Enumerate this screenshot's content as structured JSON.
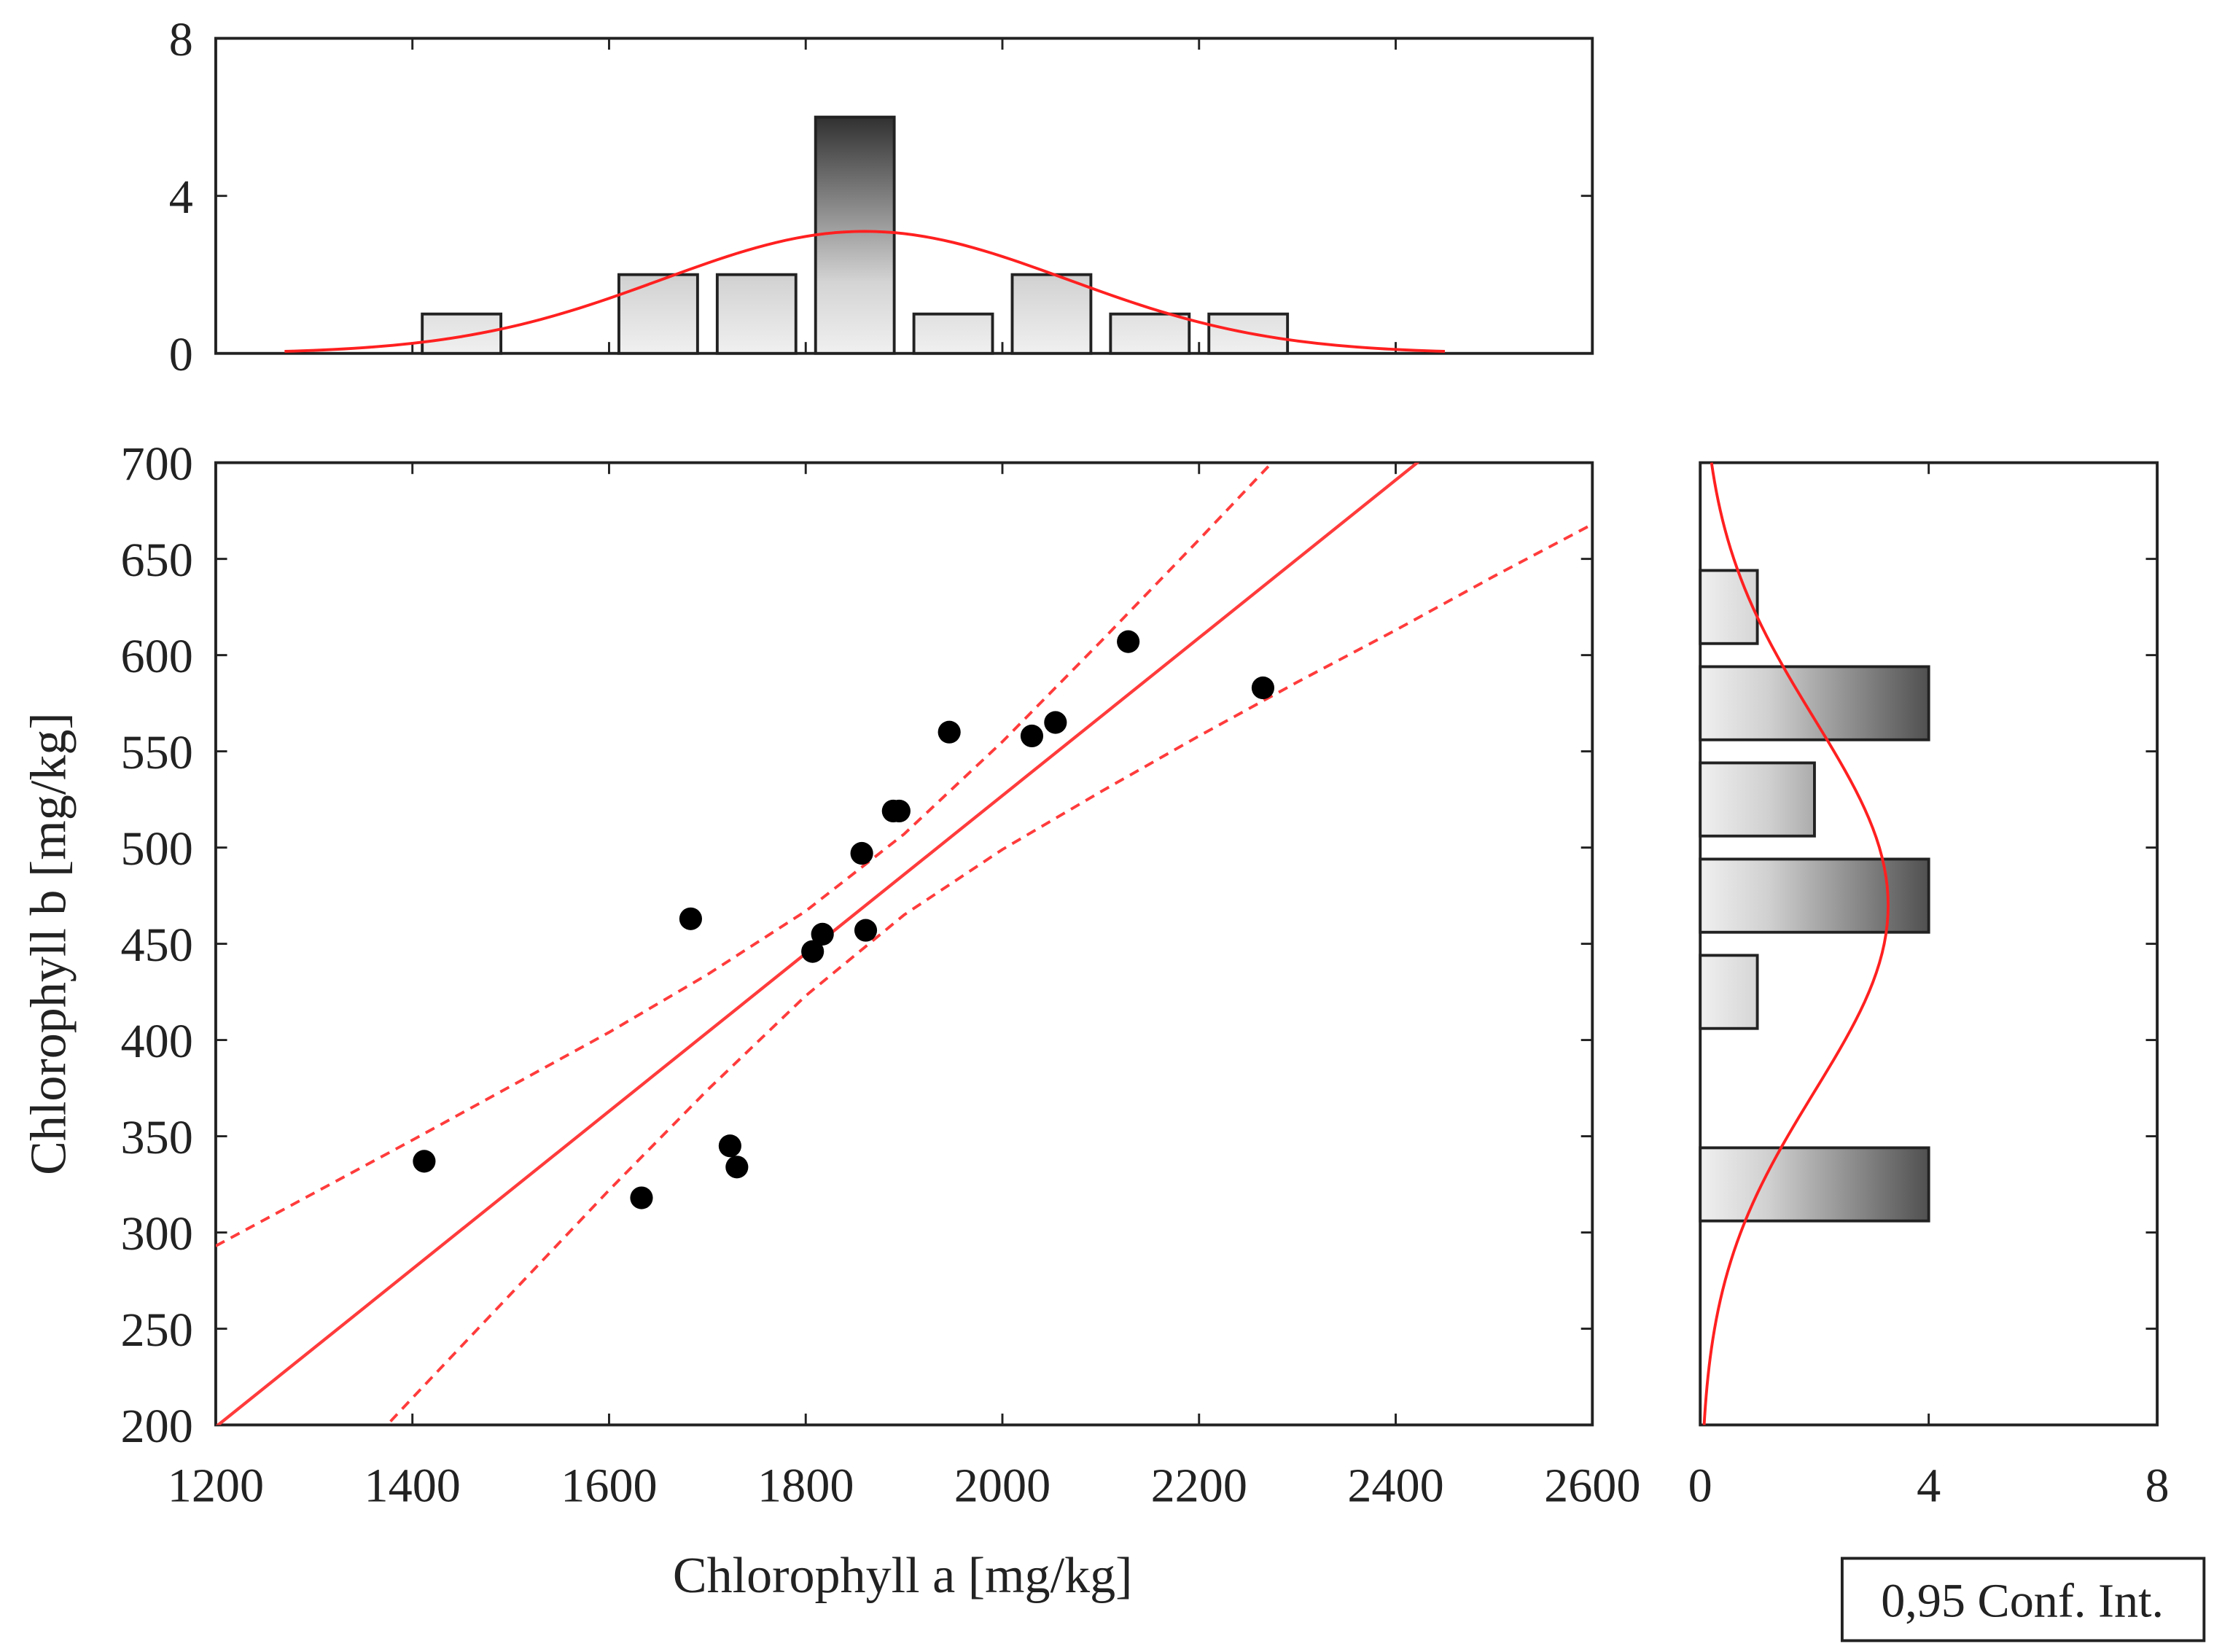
{
  "chart_data": [
    {
      "type": "scatter",
      "name": "main-scatter",
      "xlabel": "Chlorophyll a [mg/kg]",
      "ylabel": "Chlorophyll b [mg/kg]",
      "xlim": [
        1200,
        2600
      ],
      "ylim": [
        200,
        700
      ],
      "xticks": [
        1200,
        1400,
        1600,
        1800,
        2000,
        2200,
        2400,
        2600
      ],
      "yticks": [
        200,
        250,
        300,
        350,
        400,
        450,
        500,
        550,
        600,
        650,
        700
      ],
      "points": [
        {
          "x": 1412,
          "y": 337
        },
        {
          "x": 1633,
          "y": 318
        },
        {
          "x": 1683,
          "y": 463
        },
        {
          "x": 1723,
          "y": 345
        },
        {
          "x": 1730,
          "y": 334
        },
        {
          "x": 1807,
          "y": 446
        },
        {
          "x": 1817,
          "y": 455
        },
        {
          "x": 1857,
          "y": 497
        },
        {
          "x": 1861,
          "y": 457
        },
        {
          "x": 1889,
          "y": 519
        },
        {
          "x": 1895,
          "y": 519
        },
        {
          "x": 1946,
          "y": 560
        },
        {
          "x": 2030,
          "y": 558
        },
        {
          "x": 2054,
          "y": 565
        },
        {
          "x": 2128,
          "y": 607
        },
        {
          "x": 2265,
          "y": 583
        }
      ],
      "regression": {
        "slope": 0.41,
        "intercept": -293
      },
      "confidence_band": {
        "x": [
          1200,
          1300,
          1400,
          1500,
          1600,
          1700,
          1800,
          1900,
          2000,
          2100,
          2200,
          2300,
          2400,
          2500,
          2600
        ],
        "upper": [
          293,
          320.5,
          348,
          376,
          404,
          434,
          467,
          507,
          555,
          607,
          660,
          714,
          769,
          823,
          878
        ],
        "lower": [
          105,
          159.5,
          214,
          268,
          322,
          374,
          423,
          465,
          499,
          529,
          558,
          586,
          613,
          641,
          668
        ]
      },
      "legend": {
        "label": "0,95 Conf. Int.",
        "placement": "bottom-right"
      },
      "colors": {
        "points": "#000000",
        "fit": "#ff3b3b",
        "frame": "#222222"
      }
    },
    {
      "type": "bar",
      "name": "top-histogram-chlorophyll-a",
      "orientation": "vertical",
      "categories": [
        1450,
        1650,
        1750,
        1850,
        1950,
        2050,
        2150,
        2250
      ],
      "bin_width": 100,
      "values": [
        1,
        2,
        2,
        6,
        1,
        2,
        1,
        1
      ],
      "ylim": [
        0,
        8
      ],
      "yticks": [
        0,
        4,
        8
      ],
      "normal_fit": {
        "mean": 1860,
        "sd": 206,
        "n": 16
      },
      "colors": {
        "bar_light": "#f0f0f0",
        "bar_dark": "#303030",
        "fit": "#ff2020"
      }
    },
    {
      "type": "bar",
      "name": "right-histogram-chlorophyll-b",
      "orientation": "horizontal",
      "categories": [
        625,
        575,
        525,
        475,
        425,
        325
      ],
      "bin_width": 50,
      "values": [
        1,
        4,
        2,
        4,
        1,
        4
      ],
      "xlim": [
        0,
        8
      ],
      "xticks": [
        0,
        4,
        8
      ],
      "normal_fit": {
        "mean": 470,
        "sd": 97,
        "n": 16
      },
      "colors": {
        "bar_light": "#f0f0f0",
        "bar_dark": "#505050",
        "fit": "#ff2020"
      }
    }
  ]
}
